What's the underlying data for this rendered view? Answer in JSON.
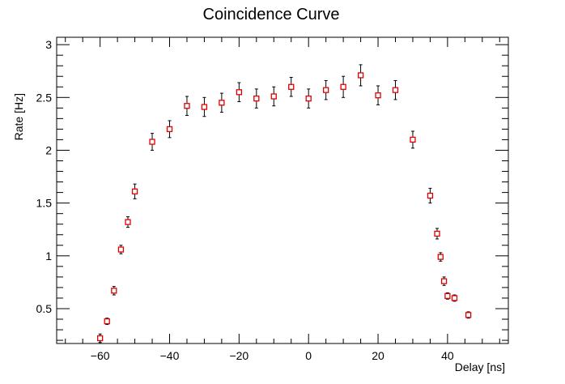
{
  "chart_data": {
    "type": "scatter",
    "title": "Coincidence Curve",
    "xlabel": "Delay [ns]",
    "ylabel": "Rate [Hz]",
    "xlim": [
      -72.5,
      57.5
    ],
    "ylim": [
      0.17,
      3.07
    ],
    "x_ticks": [
      -60,
      -40,
      -20,
      0,
      20,
      40
    ],
    "x_tick_labels": [
      "−60",
      "−40",
      "−20",
      "0",
      "20",
      "40"
    ],
    "y_ticks": [
      0.5,
      1,
      1.5,
      2,
      2.5,
      3
    ],
    "y_tick_labels": [
      "0.5",
      "1",
      "1.5",
      "2",
      "2.5",
      "3"
    ],
    "grid": false,
    "marker": "open-square",
    "marker_color": "#e00000",
    "errorbar_color": "#000000",
    "series": [
      {
        "x": [
          -60,
          -58,
          -56,
          -54,
          -52,
          -50,
          -45,
          -40,
          -35,
          -30,
          -25,
          -20,
          -15,
          -10,
          -5,
          0,
          5,
          10,
          15,
          20,
          25,
          30,
          35,
          37,
          38,
          39,
          40,
          42,
          46
        ],
        "y": [
          0.22,
          0.38,
          0.67,
          1.06,
          1.32,
          1.61,
          2.08,
          2.2,
          2.42,
          2.41,
          2.45,
          2.55,
          2.49,
          2.51,
          2.6,
          2.49,
          2.57,
          2.6,
          2.71,
          2.52,
          2.57,
          2.1,
          1.57,
          1.21,
          0.99,
          0.76,
          0.62,
          0.6,
          0.44
        ],
        "yerr": [
          0.04,
          0.03,
          0.04,
          0.04,
          0.05,
          0.07,
          0.08,
          0.08,
          0.09,
          0.09,
          0.09,
          0.09,
          0.09,
          0.09,
          0.09,
          0.09,
          0.09,
          0.1,
          0.1,
          0.09,
          0.09,
          0.08,
          0.07,
          0.05,
          0.04,
          0.04,
          0.03,
          0.03,
          0.03
        ]
      }
    ]
  }
}
